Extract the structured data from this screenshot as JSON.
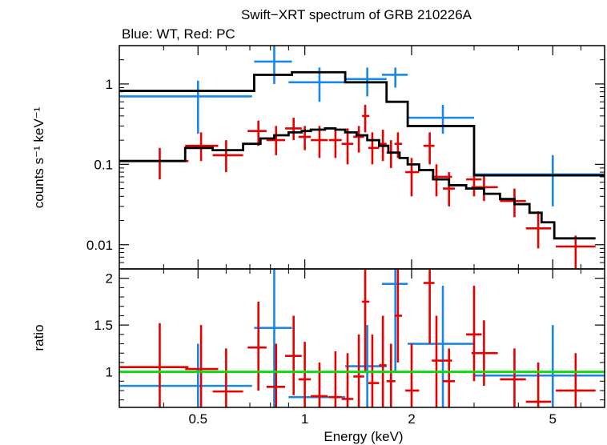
{
  "chart_data": {
    "type": "scatter",
    "title": "Swift−XRT spectrum of GRB 210226A",
    "subtitle": "Blue: WT, Red: PC",
    "xlabel": "Energy (keV)",
    "xscale": "log",
    "xlim": [
      0.3,
      7.0
    ],
    "x_ticks": [
      0.5,
      1,
      2,
      5
    ],
    "x_tick_labels": [
      "0.5",
      "1",
      "2",
      "5"
    ],
    "colors": {
      "wt": "#1a87e6",
      "pc": "#e60000",
      "model": "#000000",
      "unity": "#11d911"
    },
    "panels": [
      {
        "id": "spectrum",
        "ylabel": "counts s⁻¹ keV⁻¹",
        "yscale": "log",
        "ylim": [
          0.005,
          3.0
        ],
        "y_ticks": [
          0.01,
          0.1,
          1
        ],
        "y_tick_labels": [
          "0.01",
          "0.1",
          "1"
        ],
        "series": [
          {
            "key": "wt",
            "kind": "errorbar",
            "points": [
              {
                "x": 0.5,
                "xlo": 0.3,
                "xhi": 0.71,
                "y": 0.7,
                "ylo": 0.24,
                "yhi": 1.1
              },
              {
                "x": 0.82,
                "xlo": 0.72,
                "xhi": 0.92,
                "y": 1.9,
                "ylo": 1.0,
                "yhi": 3.0
              },
              {
                "x": 1.1,
                "xlo": 0.9,
                "xhi": 1.3,
                "y": 1.05,
                "ylo": 0.6,
                "yhi": 1.6
              },
              {
                "x": 1.5,
                "xlo": 1.3,
                "xhi": 1.7,
                "y": 1.15,
                "ylo": 0.7,
                "yhi": 1.6
              },
              {
                "x": 1.8,
                "xlo": 1.65,
                "xhi": 1.95,
                "y": 1.3,
                "ylo": 0.9,
                "yhi": 1.6
              },
              {
                "x": 2.45,
                "xlo": 1.95,
                "xhi": 3.0,
                "y": 0.38,
                "ylo": 0.24,
                "yhi": 0.55
              },
              {
                "x": 5.0,
                "xlo": 3.0,
                "xhi": 7.0,
                "y": 0.075,
                "ylo": 0.03,
                "yhi": 0.13
              }
            ]
          },
          {
            "key": "pc",
            "kind": "errorbar",
            "points": [
              {
                "x": 0.39,
                "xlo": 0.3,
                "xhi": 0.47,
                "y": 0.11,
                "ylo": 0.065,
                "yhi": 0.16
              },
              {
                "x": 0.51,
                "xlo": 0.46,
                "xhi": 0.57,
                "y": 0.17,
                "ylo": 0.11,
                "yhi": 0.25
              },
              {
                "x": 0.6,
                "xlo": 0.55,
                "xhi": 0.67,
                "y": 0.13,
                "ylo": 0.08,
                "yhi": 0.2
              },
              {
                "x": 0.74,
                "xlo": 0.69,
                "xhi": 0.78,
                "y": 0.26,
                "ylo": 0.17,
                "yhi": 0.35
              },
              {
                "x": 0.83,
                "xlo": 0.78,
                "xhi": 0.88,
                "y": 0.2,
                "ylo": 0.13,
                "yhi": 0.3
              },
              {
                "x": 0.93,
                "xlo": 0.88,
                "xhi": 0.98,
                "y": 0.28,
                "ylo": 0.2,
                "yhi": 0.38
              },
              {
                "x": 1.0,
                "xlo": 0.96,
                "xhi": 1.04,
                "y": 0.22,
                "ylo": 0.15,
                "yhi": 0.3
              },
              {
                "x": 1.1,
                "xlo": 1.04,
                "xhi": 1.16,
                "y": 0.2,
                "ylo": 0.12,
                "yhi": 0.3
              },
              {
                "x": 1.22,
                "xlo": 1.17,
                "xhi": 1.27,
                "y": 0.2,
                "ylo": 0.12,
                "yhi": 0.28
              },
              {
                "x": 1.32,
                "xlo": 1.27,
                "xhi": 1.37,
                "y": 0.18,
                "ylo": 0.1,
                "yhi": 0.28
              },
              {
                "x": 1.42,
                "xlo": 1.37,
                "xhi": 1.47,
                "y": 0.22,
                "ylo": 0.14,
                "yhi": 0.3
              },
              {
                "x": 1.48,
                "xlo": 1.45,
                "xhi": 1.52,
                "y": 0.4,
                "ylo": 0.25,
                "yhi": 0.55
              },
              {
                "x": 1.55,
                "xlo": 1.51,
                "xhi": 1.62,
                "y": 0.16,
                "ylo": 0.1,
                "yhi": 0.25
              },
              {
                "x": 1.66,
                "xlo": 1.62,
                "xhi": 1.7,
                "y": 0.18,
                "ylo": 0.11,
                "yhi": 0.27
              },
              {
                "x": 1.75,
                "xlo": 1.7,
                "xhi": 1.8,
                "y": 0.14,
                "ylo": 0.09,
                "yhi": 0.2
              },
              {
                "x": 1.83,
                "xlo": 1.79,
                "xhi": 1.88,
                "y": 0.18,
                "ylo": 0.12,
                "yhi": 0.25
              },
              {
                "x": 2.0,
                "xlo": 1.92,
                "xhi": 2.1,
                "y": 0.08,
                "ylo": 0.04,
                "yhi": 0.12
              },
              {
                "x": 2.25,
                "xlo": 2.16,
                "xhi": 2.32,
                "y": 0.17,
                "ylo": 0.1,
                "yhi": 0.25
              },
              {
                "x": 2.35,
                "xlo": 2.28,
                "xhi": 2.6,
                "y": 0.07,
                "ylo": 0.04,
                "yhi": 0.1
              },
              {
                "x": 2.55,
                "xlo": 2.45,
                "xhi": 2.65,
                "y": 0.05,
                "ylo": 0.03,
                "yhi": 0.08
              },
              {
                "x": 3.0,
                "xlo": 2.85,
                "xhi": 3.15,
                "y": 0.065,
                "ylo": 0.04,
                "yhi": 0.09
              },
              {
                "x": 3.2,
                "xlo": 2.95,
                "xhi": 3.5,
                "y": 0.052,
                "ylo": 0.035,
                "yhi": 0.075
              },
              {
                "x": 3.9,
                "xlo": 3.55,
                "xhi": 4.2,
                "y": 0.035,
                "ylo": 0.022,
                "yhi": 0.05
              },
              {
                "x": 4.55,
                "xlo": 4.2,
                "xhi": 4.95,
                "y": 0.016,
                "ylo": 0.009,
                "yhi": 0.026
              },
              {
                "x": 5.8,
                "xlo": 5.1,
                "xhi": 6.6,
                "y": 0.0095,
                "ylo": 0.005,
                "yhi": 0.013
              }
            ]
          },
          {
            "key": "model",
            "kind": "step",
            "points": [
              {
                "x": 0.3,
                "y": 0.82
              },
              {
                "x": 0.72,
                "y": 1.3
              },
              {
                "x": 0.92,
                "y": 1.4
              },
              {
                "x": 1.3,
                "y": 1.05
              },
              {
                "x": 1.7,
                "y": 0.6
              },
              {
                "x": 1.95,
                "y": 0.3
              },
              {
                "x": 3.0,
                "y": 0.073
              },
              {
                "x": 7.0,
                "y": 0.073
              }
            ]
          },
          {
            "key": "model",
            "kind": "step",
            "points": [
              {
                "x": 0.3,
                "y": 0.11
              },
              {
                "x": 0.46,
                "y": 0.16
              },
              {
                "x": 0.55,
                "y": 0.15
              },
              {
                "x": 0.67,
                "y": 0.18
              },
              {
                "x": 0.75,
                "y": 0.21
              },
              {
                "x": 0.82,
                "y": 0.23
              },
              {
                "x": 0.9,
                "y": 0.25
              },
              {
                "x": 0.98,
                "y": 0.26
              },
              {
                "x": 1.04,
                "y": 0.27
              },
              {
                "x": 1.14,
                "y": 0.28
              },
              {
                "x": 1.22,
                "y": 0.27
              },
              {
                "x": 1.3,
                "y": 0.25
              },
              {
                "x": 1.4,
                "y": 0.23
              },
              {
                "x": 1.5,
                "y": 0.2
              },
              {
                "x": 1.62,
                "y": 0.17
              },
              {
                "x": 1.72,
                "y": 0.14
              },
              {
                "x": 1.85,
                "y": 0.12
              },
              {
                "x": 1.95,
                "y": 0.1
              },
              {
                "x": 2.1,
                "y": 0.085
              },
              {
                "x": 2.3,
                "y": 0.065
              },
              {
                "x": 2.55,
                "y": 0.055
              },
              {
                "x": 2.85,
                "y": 0.05
              },
              {
                "x": 3.2,
                "y": 0.043
              },
              {
                "x": 3.55,
                "y": 0.037
              },
              {
                "x": 3.9,
                "y": 0.032
              },
              {
                "x": 4.3,
                "y": 0.025
              },
              {
                "x": 4.65,
                "y": 0.019
              },
              {
                "x": 5.05,
                "y": 0.012
              },
              {
                "x": 6.6,
                "y": 0.012
              }
            ]
          }
        ]
      },
      {
        "id": "ratio",
        "ylabel": "ratio",
        "yscale": "linear",
        "ylim": [
          0.62,
          2.1
        ],
        "y_ticks": [
          1,
          1.5,
          2
        ],
        "y_tick_labels": [
          "1",
          "1.5",
          "2"
        ],
        "series": [
          {
            "key": "wt",
            "kind": "errorbar",
            "points": [
              {
                "x": 0.5,
                "xlo": 0.3,
                "xhi": 0.71,
                "y": 0.85,
                "ylo": 0.62,
                "yhi": 1.3
              },
              {
                "x": 0.82,
                "xlo": 0.72,
                "xhi": 0.92,
                "y": 1.47,
                "ylo": 0.62,
                "yhi": 2.1
              },
              {
                "x": 1.1,
                "xlo": 0.9,
                "xhi": 1.3,
                "y": 0.73,
                "ylo": 0.62,
                "yhi": 1.05
              },
              {
                "x": 1.5,
                "xlo": 1.3,
                "xhi": 1.7,
                "y": 1.06,
                "ylo": 0.62,
                "yhi": 1.5
              },
              {
                "x": 1.8,
                "xlo": 1.65,
                "xhi": 1.95,
                "y": 1.94,
                "ylo": 1.0,
                "yhi": 2.1
              },
              {
                "x": 2.45,
                "xlo": 1.95,
                "xhi": 3.0,
                "y": 1.3,
                "ylo": 0.62,
                "yhi": 1.92
              },
              {
                "x": 5.0,
                "xlo": 3.0,
                "xhi": 7.0,
                "y": 0.96,
                "ylo": 0.62,
                "yhi": 1.5
              }
            ]
          },
          {
            "key": "pc",
            "kind": "errorbar",
            "points": [
              {
                "x": 0.39,
                "xlo": 0.3,
                "xhi": 0.47,
                "y": 1.05,
                "ylo": 0.62,
                "yhi": 1.52
              },
              {
                "x": 0.51,
                "xlo": 0.46,
                "xhi": 0.57,
                "y": 1.03,
                "ylo": 0.62,
                "yhi": 1.5
              },
              {
                "x": 0.6,
                "xlo": 0.55,
                "xhi": 0.67,
                "y": 0.79,
                "ylo": 0.62,
                "yhi": 1.25
              },
              {
                "x": 0.74,
                "xlo": 0.69,
                "xhi": 0.78,
                "y": 1.26,
                "ylo": 0.8,
                "yhi": 1.75
              },
              {
                "x": 0.83,
                "xlo": 0.78,
                "xhi": 0.88,
                "y": 0.84,
                "ylo": 0.62,
                "yhi": 1.3
              },
              {
                "x": 0.93,
                "xlo": 0.88,
                "xhi": 0.98,
                "y": 1.17,
                "ylo": 0.75,
                "yhi": 1.6
              },
              {
                "x": 1.0,
                "xlo": 0.96,
                "xhi": 1.04,
                "y": 0.92,
                "ylo": 0.62,
                "yhi": 1.32
              },
              {
                "x": 1.1,
                "xlo": 1.04,
                "xhi": 1.16,
                "y": 0.74,
                "ylo": 0.62,
                "yhi": 1.1
              },
              {
                "x": 1.22,
                "xlo": 1.17,
                "xhi": 1.27,
                "y": 0.73,
                "ylo": 0.62,
                "yhi": 1.22
              },
              {
                "x": 1.32,
                "xlo": 1.27,
                "xhi": 1.37,
                "y": 0.71,
                "ylo": 0.62,
                "yhi": 1.2
              },
              {
                "x": 1.42,
                "xlo": 1.37,
                "xhi": 1.47,
                "y": 0.95,
                "ylo": 0.62,
                "yhi": 1.4
              },
              {
                "x": 1.48,
                "xlo": 1.45,
                "xhi": 1.52,
                "y": 1.75,
                "ylo": 1.0,
                "yhi": 2.1
              },
              {
                "x": 1.55,
                "xlo": 1.51,
                "xhi": 1.62,
                "y": 0.88,
                "ylo": 0.62,
                "yhi": 1.4
              },
              {
                "x": 1.66,
                "xlo": 1.62,
                "xhi": 1.7,
                "y": 1.07,
                "ylo": 0.62,
                "yhi": 1.6
              },
              {
                "x": 1.75,
                "xlo": 1.7,
                "xhi": 1.8,
                "y": 0.9,
                "ylo": 0.62,
                "yhi": 1.3
              },
              {
                "x": 1.83,
                "xlo": 1.79,
                "xhi": 1.88,
                "y": 1.6,
                "ylo": 1.1,
                "yhi": 2.1
              },
              {
                "x": 2.0,
                "xlo": 1.92,
                "xhi": 2.1,
                "y": 0.8,
                "ylo": 0.62,
                "yhi": 1.3
              },
              {
                "x": 2.25,
                "xlo": 2.16,
                "xhi": 2.32,
                "y": 1.95,
                "ylo": 1.3,
                "yhi": 2.1
              },
              {
                "x": 2.35,
                "xlo": 2.28,
                "xhi": 2.6,
                "y": 1.12,
                "ylo": 0.62,
                "yhi": 1.6
              },
              {
                "x": 2.55,
                "xlo": 2.45,
                "xhi": 2.65,
                "y": 0.9,
                "ylo": 0.62,
                "yhi": 1.25
              },
              {
                "x": 3.0,
                "xlo": 2.85,
                "xhi": 3.15,
                "y": 1.4,
                "ylo": 0.9,
                "yhi": 1.92
              },
              {
                "x": 3.2,
                "xlo": 2.95,
                "xhi": 3.5,
                "y": 1.2,
                "ylo": 0.85,
                "yhi": 1.55
              },
              {
                "x": 3.9,
                "xlo": 3.55,
                "xhi": 4.2,
                "y": 0.92,
                "ylo": 0.62,
                "yhi": 1.25
              },
              {
                "x": 4.55,
                "xlo": 4.2,
                "xhi": 4.95,
                "y": 0.68,
                "ylo": 0.62,
                "yhi": 1.1
              },
              {
                "x": 5.8,
                "xlo": 5.1,
                "xhi": 6.6,
                "y": 0.8,
                "ylo": 0.62,
                "yhi": 1.2
              }
            ]
          },
          {
            "key": "unity",
            "kind": "line",
            "points": [
              {
                "x": 0.3,
                "y": 1.0
              },
              {
                "x": 7.0,
                "y": 1.0
              }
            ]
          }
        ]
      }
    ]
  }
}
